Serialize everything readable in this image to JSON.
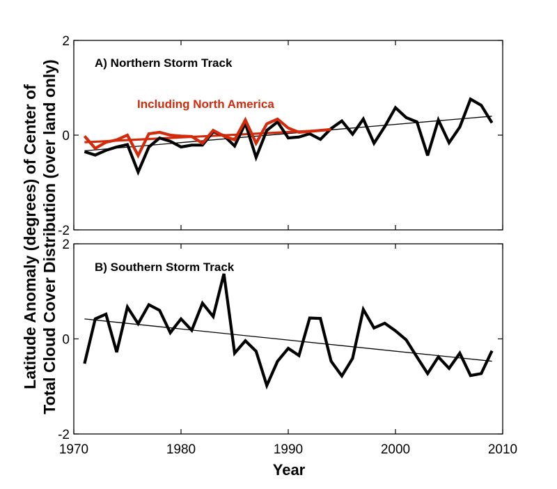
{
  "chart_data": [
    {
      "type": "line",
      "title": "A) Northern Storm Track",
      "xlim": [
        1970,
        2010
      ],
      "ylim": [
        -2,
        2
      ],
      "yticks": [
        "-2",
        "0",
        "2"
      ],
      "xticks": [
        "1970",
        "1980",
        "1990",
        "2000",
        "2010"
      ],
      "show_xtick_labels": false,
      "annotation": "Including North America",
      "colors": {
        "main": "#000000",
        "north_america": "#d42a0c",
        "trend": "#000000"
      },
      "series": [
        {
          "role": "main",
          "x": [
            1971,
            1972,
            1973,
            1974,
            1975,
            1976,
            1977,
            1978,
            1979,
            1980,
            1981,
            1982,
            1983,
            1984,
            1985,
            1986,
            1987,
            1988,
            1989,
            1990,
            1991,
            1992,
            1993,
            1994,
            1995,
            1996,
            1997,
            1998,
            1999,
            2000,
            2001,
            2002,
            2003,
            2004,
            2005,
            2006,
            2007,
            2008,
            2009
          ],
          "y": [
            -0.35,
            -0.42,
            -0.32,
            -0.25,
            -0.2,
            -0.78,
            -0.25,
            -0.06,
            -0.13,
            -0.25,
            -0.21,
            -0.21,
            0.07,
            -0.01,
            -0.23,
            0.25,
            -0.47,
            0.1,
            0.28,
            -0.06,
            -0.04,
            0.03,
            -0.09,
            0.14,
            0.3,
            0.02,
            0.34,
            -0.17,
            0.18,
            0.58,
            0.37,
            0.28,
            -0.43,
            0.32,
            -0.16,
            0.17,
            0.76,
            0.63,
            0.26
          ]
        },
        {
          "name": "Including North America",
          "role": "north_america",
          "x": [
            1971,
            1972,
            1973,
            1974,
            1975,
            1976,
            1977,
            1978,
            1979,
            1980,
            1981,
            1982,
            1983,
            1984,
            1985,
            1986,
            1987,
            1988,
            1989,
            1990,
            1991,
            1992,
            1993,
            1994
          ],
          "y": [
            -0.02,
            -0.28,
            -0.15,
            -0.1,
            0.0,
            -0.43,
            0.03,
            0.06,
            0.0,
            -0.02,
            -0.03,
            -0.17,
            0.1,
            -0.02,
            -0.1,
            0.32,
            -0.17,
            0.24,
            0.34,
            0.15,
            0.06,
            0.08,
            0.1,
            0.12
          ]
        }
      ],
      "trends": [
        {
          "role": "trend",
          "x": [
            1971,
            2009
          ],
          "y": [
            -0.33,
            0.4
          ]
        },
        {
          "role": "north_america",
          "x": [
            1971,
            1994
          ],
          "y": [
            -0.15,
            0.11
          ]
        }
      ]
    },
    {
      "type": "line",
      "title": "B) Southern Storm Track",
      "xlim": [
        1970,
        2010
      ],
      "ylim": [
        -2,
        2
      ],
      "yticks": [
        "-2",
        "0",
        "2"
      ],
      "xticks": [
        "1970",
        "1980",
        "1990",
        "2000",
        "2010"
      ],
      "show_xtick_labels": true,
      "colors": {
        "main": "#000000",
        "trend": "#000000"
      },
      "series": [
        {
          "role": "main",
          "x": [
            1971,
            1972,
            1973,
            1974,
            1975,
            1976,
            1977,
            1978,
            1979,
            1980,
            1981,
            1982,
            1983,
            1984,
            1985,
            1986,
            1987,
            1988,
            1989,
            1990,
            1991,
            1992,
            1993,
            1994,
            1995,
            1996,
            1997,
            1998,
            1999,
            2000,
            2001,
            2002,
            2003,
            2004,
            2005,
            2006,
            2007,
            2008,
            2009
          ],
          "y": [
            -0.52,
            0.42,
            0.52,
            -0.28,
            0.67,
            0.32,
            0.72,
            0.6,
            0.13,
            0.42,
            0.18,
            0.75,
            0.47,
            1.37,
            -0.3,
            -0.04,
            -0.26,
            -0.98,
            -0.47,
            -0.2,
            -0.35,
            0.44,
            0.43,
            -0.47,
            -0.78,
            -0.41,
            0.62,
            0.23,
            0.33,
            0.17,
            -0.02,
            -0.38,
            -0.73,
            -0.38,
            -0.62,
            -0.3,
            -0.77,
            -0.73,
            -0.25
          ]
        }
      ],
      "trends": [
        {
          "role": "trend",
          "x": [
            1971,
            2009
          ],
          "y": [
            0.42,
            -0.47
          ]
        }
      ]
    }
  ],
  "labels": {
    "ylabel_line1": "Latitude Anomaly (degrees) of Center of",
    "ylabel_line2": "Total Cloud Cover Distribution (over land only)",
    "xlabel": "Year"
  }
}
